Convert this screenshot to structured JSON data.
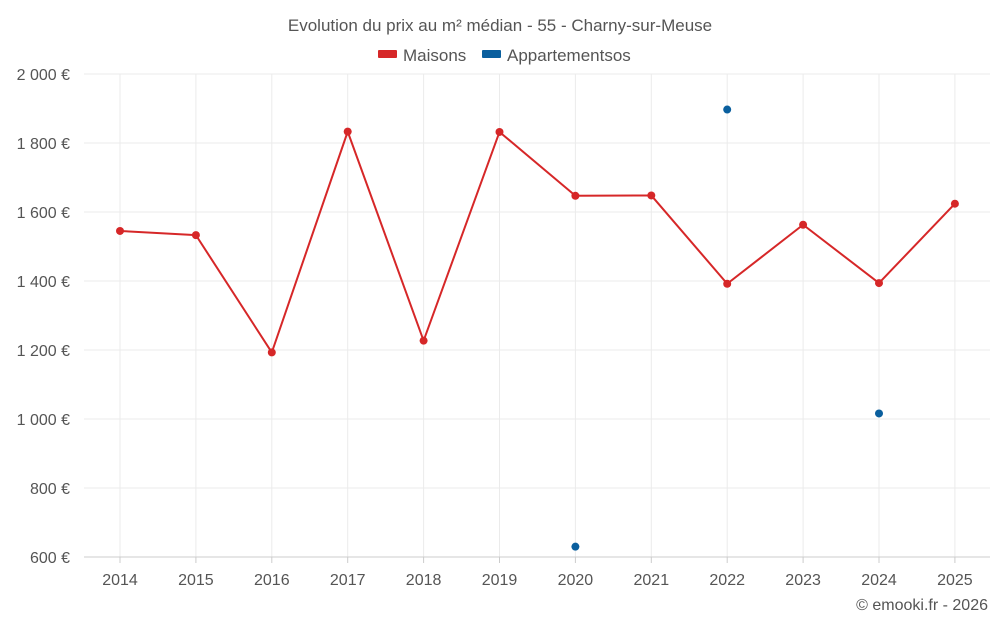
{
  "chart_data": {
    "type": "line",
    "title": "Evolution du prix au m² médian - 55 - Charny-sur-Meuse",
    "categories": [
      "2014",
      "2015",
      "2016",
      "2017",
      "2018",
      "2019",
      "2020",
      "2021",
      "2022",
      "2023",
      "2024",
      "2025"
    ],
    "ylim": [
      600,
      2000
    ],
    "yticks": [
      600,
      800,
      1000,
      1200,
      1400,
      1600,
      1800,
      2000
    ],
    "ytick_labels": [
      "600 €",
      "800 €",
      "1 000 €",
      "1 200 €",
      "1 400 €",
      "1 600 €",
      "1 800 €",
      "2 000 €"
    ],
    "grid": true,
    "legend_position": "top-center",
    "series": [
      {
        "name": "Maisons",
        "color": "#d62728",
        "style": "line",
        "values": [
          1545,
          1533,
          1193,
          1833,
          1227,
          1832,
          1647,
          1648,
          1392,
          1563,
          1394,
          1624
        ]
      },
      {
        "name": "Appartementsos",
        "color": "#0a5f9e",
        "style": "scatter",
        "values": [
          null,
          null,
          null,
          null,
          null,
          null,
          630,
          null,
          1897,
          null,
          1016,
          null
        ]
      }
    ]
  },
  "credit": "© emooki.fr - 2026"
}
